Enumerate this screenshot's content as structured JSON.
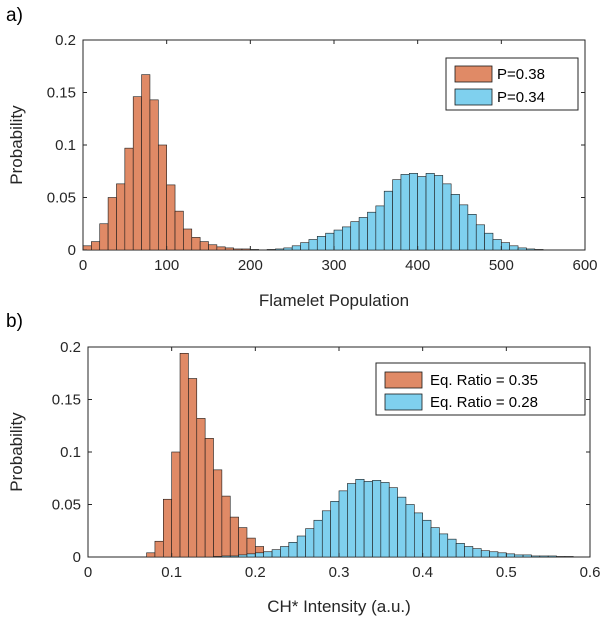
{
  "chart_data": [
    {
      "type": "bar",
      "subtype": "histogram",
      "panel_label": "a)",
      "xlabel": "Flamelet Population",
      "ylabel": "Probability",
      "xlim": [
        0,
        600
      ],
      "ylim": [
        0,
        0.2
      ],
      "xticks": [
        0,
        100,
        200,
        300,
        400,
        500,
        600
      ],
      "xtick_labels": [
        "0",
        "100",
        "200",
        "300",
        "400",
        "500",
        "600"
      ],
      "yticks": [
        0,
        0.05,
        0.1,
        0.15,
        0.2
      ],
      "ytick_labels": [
        "0",
        "0.05",
        "0.1",
        "0.15",
        "0.2"
      ],
      "grid": false,
      "legend_position": "top-right",
      "series": [
        {
          "name": "P=0.38",
          "color": "#E08A66",
          "bin_width": 10,
          "bin_starts": [
            0,
            10,
            20,
            30,
            40,
            50,
            60,
            70,
            80,
            90,
            100,
            110,
            120,
            130,
            140,
            150,
            160,
            170,
            180,
            190,
            200
          ],
          "values": [
            0.004,
            0.008,
            0.025,
            0.05,
            0.063,
            0.097,
            0.146,
            0.167,
            0.143,
            0.1,
            0.062,
            0.037,
            0.02,
            0.012,
            0.008,
            0.005,
            0.003,
            0.002,
            0.001,
            0.001,
            0.0005
          ]
        },
        {
          "name": "P=0.34",
          "color": "#7FD0EE",
          "bin_width": 10,
          "bin_starts": [
            220,
            230,
            240,
            250,
            260,
            270,
            280,
            290,
            300,
            310,
            320,
            330,
            340,
            350,
            360,
            370,
            380,
            390,
            400,
            410,
            420,
            430,
            440,
            450,
            460,
            470,
            480,
            490,
            500,
            510,
            520,
            530,
            540
          ],
          "values": [
            0.0005,
            0.001,
            0.002,
            0.004,
            0.007,
            0.01,
            0.013,
            0.016,
            0.019,
            0.022,
            0.027,
            0.031,
            0.036,
            0.042,
            0.056,
            0.067,
            0.072,
            0.073,
            0.07,
            0.073,
            0.071,
            0.063,
            0.053,
            0.043,
            0.034,
            0.024,
            0.016,
            0.01,
            0.007,
            0.004,
            0.002,
            0.001,
            0.0005
          ]
        }
      ]
    },
    {
      "type": "bar",
      "subtype": "histogram",
      "panel_label": "b)",
      "xlabel": "CH* Intensity (a.u.)",
      "ylabel": "Probability",
      "xlim": [
        0,
        0.6
      ],
      "ylim": [
        0,
        0.2
      ],
      "xticks": [
        0,
        0.1,
        0.2,
        0.3,
        0.4,
        0.5,
        0.6
      ],
      "xtick_labels": [
        "0",
        "0.1",
        "0.2",
        "0.3",
        "0.4",
        "0.5",
        "0.6"
      ],
      "yticks": [
        0,
        0.05,
        0.1,
        0.15,
        0.2
      ],
      "ytick_labels": [
        "0",
        "0.05",
        "0.1",
        "0.15",
        "0.2"
      ],
      "grid": false,
      "legend_position": "top-right",
      "series": [
        {
          "name": "Eq. Ratio = 0.35",
          "color": "#E08A66",
          "bin_width": 0.01,
          "bin_starts": [
            0.07,
            0.08,
            0.09,
            0.1,
            0.11,
            0.12,
            0.13,
            0.14,
            0.15,
            0.16,
            0.17,
            0.18,
            0.19,
            0.2,
            0.21,
            0.22
          ],
          "values": [
            0.004,
            0.015,
            0.055,
            0.1,
            0.194,
            0.17,
            0.132,
            0.113,
            0.083,
            0.058,
            0.038,
            0.028,
            0.018,
            0.01,
            0.005,
            0.002
          ]
        },
        {
          "name": "Eq. Ratio = 0.28",
          "color": "#7FD0EE",
          "bin_width": 0.01,
          "bin_starts": [
            0.15,
            0.16,
            0.17,
            0.18,
            0.19,
            0.2,
            0.21,
            0.22,
            0.23,
            0.24,
            0.25,
            0.26,
            0.27,
            0.28,
            0.29,
            0.3,
            0.31,
            0.32,
            0.33,
            0.34,
            0.35,
            0.36,
            0.37,
            0.38,
            0.39,
            0.4,
            0.41,
            0.42,
            0.43,
            0.44,
            0.45,
            0.46,
            0.47,
            0.48,
            0.49,
            0.5,
            0.51,
            0.52,
            0.53,
            0.54,
            0.55,
            0.56,
            0.57
          ],
          "values": [
            0.0005,
            0.001,
            0.001,
            0.002,
            0.003,
            0.004,
            0.005,
            0.007,
            0.01,
            0.014,
            0.02,
            0.027,
            0.035,
            0.044,
            0.053,
            0.063,
            0.07,
            0.074,
            0.072,
            0.073,
            0.071,
            0.066,
            0.057,
            0.05,
            0.042,
            0.035,
            0.028,
            0.022,
            0.017,
            0.013,
            0.01,
            0.008,
            0.006,
            0.005,
            0.004,
            0.003,
            0.002,
            0.002,
            0.001,
            0.001,
            0.001,
            0.0005,
            0.0005
          ]
        }
      ]
    }
  ]
}
